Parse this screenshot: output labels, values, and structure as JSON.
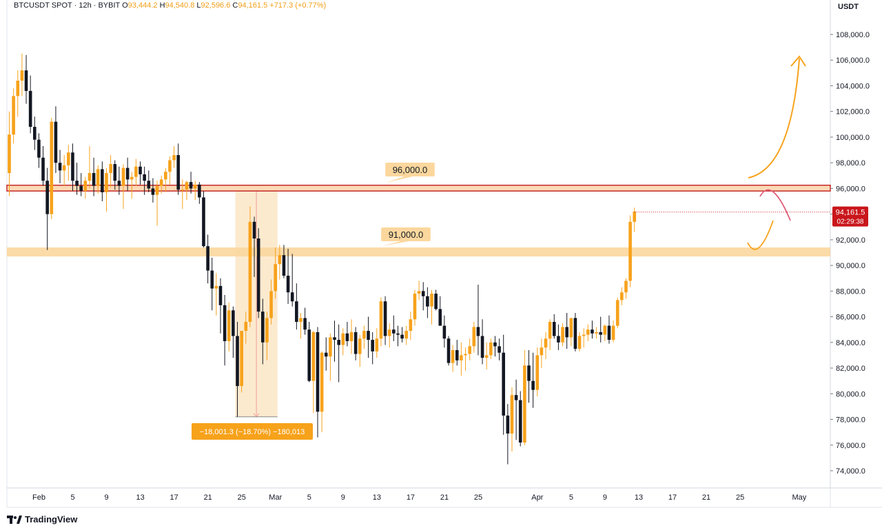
{
  "header": {
    "symbol": "BTCUSDT SPOT · 12h · BYBIT",
    "o_label": "O",
    "o_value": "93,444.2",
    "h_label": "H",
    "h_value": "94,540.8",
    "l_label": "L",
    "l_value": "92,596.6",
    "c_label": "C",
    "c_value": "94,161.5",
    "change": "+717.3 (+0.77%)"
  },
  "brand": "TradingView",
  "colors": {
    "up": "#f7a21b",
    "down": "#131722",
    "accent": "#f29d15",
    "resistance": "#c62828",
    "price_tag": "#c9161b"
  },
  "chart_data": {
    "type": "candlestick",
    "currency_label": "USDT",
    "ylim": [
      73000,
      110000
    ],
    "y_ticks": [
      74000,
      76000,
      78000,
      80000,
      82000,
      84000,
      86000,
      88000,
      90000,
      92000,
      94000,
      96000,
      98000,
      100000,
      102000,
      104000,
      106000,
      108000
    ],
    "y_tick_labels": [
      "74,000.0",
      "76,000.0",
      "78,000.0",
      "80,000.0",
      "82,000.0",
      "84,000.0",
      "86,000.0",
      "88,000.0",
      "90,000.0",
      "92,000.0",
      "94,000.0",
      "96,000.0",
      "98,000.0",
      "100,000.0",
      "102,000.0",
      "104,000.0",
      "106,000.0",
      "108,000.0"
    ],
    "x_tick_labels": [
      "Feb",
      "5",
      "9",
      "13",
      "17",
      "21",
      "25",
      "Mar",
      "5",
      "9",
      "13",
      "17",
      "21",
      "25",
      "Apr",
      "5",
      "9",
      "13",
      "17",
      "21",
      "25",
      "May"
    ],
    "x_tick_index": [
      0,
      8,
      16,
      24,
      32,
      40,
      48,
      56,
      64,
      72,
      80,
      88,
      96,
      104,
      118,
      126,
      134,
      142,
      150,
      158,
      166,
      180
    ],
    "candles": [
      [
        97200,
        102000,
        95400,
        100200
      ],
      [
        100200,
        103800,
        99500,
        103200
      ],
      [
        103200,
        105200,
        101600,
        104400
      ],
      [
        104400,
        106500,
        103200,
        105200
      ],
      [
        105200,
        106400,
        102600,
        103600
      ],
      [
        103600,
        104800,
        100300,
        100800
      ],
      [
        100800,
        101600,
        99000,
        99800
      ],
      [
        99800,
        100300,
        97600,
        98400
      ],
      [
        98400,
        99300,
        96200,
        96600
      ],
      [
        96600,
        97600,
        91200,
        94000
      ],
      [
        94000,
        101500,
        93600,
        101200
      ],
      [
        101200,
        102400,
        97200,
        98000
      ],
      [
        98000,
        99000,
        96400,
        97400
      ],
      [
        97400,
        98600,
        96200,
        97800
      ],
      [
        97800,
        99400,
        96600,
        98800
      ],
      [
        98800,
        99500,
        95800,
        96600
      ],
      [
        96600,
        98000,
        95500,
        96200
      ],
      [
        96200,
        97200,
        95400,
        95800
      ],
      [
        95800,
        96900,
        95200,
        96600
      ],
      [
        96600,
        99300,
        96000,
        97200
      ],
      [
        97200,
        98400,
        95400,
        96200
      ],
      [
        96200,
        97800,
        95600,
        97500
      ],
      [
        97500,
        98100,
        95000,
        95700
      ],
      [
        95700,
        97600,
        94200,
        97200
      ],
      [
        97200,
        98600,
        96100,
        97900
      ],
      [
        97900,
        98200,
        95900,
        96600
      ],
      [
        96600,
        97700,
        95500,
        96200
      ],
      [
        96200,
        97900,
        94400,
        97600
      ],
      [
        97600,
        98400,
        95800,
        96700
      ],
      [
        96700,
        97300,
        95200,
        96900
      ],
      [
        96900,
        98300,
        96200,
        97700
      ],
      [
        97700,
        98100,
        96300,
        97100
      ],
      [
        97100,
        97700,
        95500,
        96600
      ],
      [
        96600,
        97400,
        95700,
        96000
      ],
      [
        96000,
        96800,
        94900,
        95500
      ],
      [
        95500,
        96600,
        93100,
        96200
      ],
      [
        96200,
        97000,
        95600,
        96700
      ],
      [
        96700,
        97600,
        95700,
        97300
      ],
      [
        97300,
        98500,
        96300,
        98200
      ],
      [
        98200,
        99300,
        97600,
        98600
      ],
      [
        98600,
        99500,
        95500,
        95900
      ],
      [
        95900,
        96700,
        94400,
        95900
      ],
      [
        95900,
        96600,
        95100,
        96500
      ],
      [
        96500,
        97300,
        95600,
        96000
      ],
      [
        96000,
        96600,
        95100,
        96300
      ],
      [
        96300,
        96500,
        94800,
        95300
      ],
      [
        95300,
        95800,
        91400,
        91500
      ],
      [
        91500,
        92400,
        88600,
        89600
      ],
      [
        89600,
        90600,
        86500,
        88200
      ],
      [
        88200,
        89400,
        86100,
        88400
      ],
      [
        88400,
        89000,
        84700,
        86900
      ],
      [
        86900,
        87700,
        82200,
        84100
      ],
      [
        84100,
        87100,
        83300,
        86500
      ],
      [
        86500,
        86800,
        82800,
        84500
      ],
      [
        84500,
        85600,
        78200,
        80600
      ],
      [
        80600,
        84700,
        80100,
        84900
      ],
      [
        84900,
        86400,
        83900,
        85600
      ],
      [
        85600,
        94600,
        85200,
        93400
      ],
      [
        93400,
        93800,
        89100,
        92100
      ],
      [
        92100,
        92900,
        85900,
        86400
      ],
      [
        86400,
        87400,
        82300,
        84000
      ],
      [
        84000,
        86400,
        82600,
        85900
      ],
      [
        85900,
        88900,
        85400,
        88000
      ],
      [
        88000,
        91400,
        87400,
        90100
      ],
      [
        90100,
        91600,
        88900,
        90800
      ],
      [
        90800,
        91600,
        89000,
        89200
      ],
      [
        89200,
        91300,
        87000,
        87900
      ],
      [
        87900,
        90900,
        86800,
        87200
      ],
      [
        87200,
        88600,
        85000,
        85600
      ],
      [
        85600,
        86300,
        84300,
        85900
      ],
      [
        85900,
        86700,
        84600,
        85000
      ],
      [
        85000,
        85600,
        80900,
        81000
      ],
      [
        81000,
        84900,
        78500,
        84800
      ],
      [
        84800,
        85200,
        76600,
        78600
      ],
      [
        78600,
        83300,
        77000,
        83200
      ],
      [
        83200,
        84400,
        81800,
        82900
      ],
      [
        82900,
        84700,
        81000,
        84400
      ],
      [
        84400,
        85700,
        82500,
        84200
      ],
      [
        84200,
        85400,
        80900,
        83800
      ],
      [
        83800,
        85100,
        83000,
        84700
      ],
      [
        84700,
        85600,
        83700,
        84100
      ],
      [
        84100,
        85800,
        83100,
        84800
      ],
      [
        84800,
        85200,
        82600,
        83100
      ],
      [
        83100,
        84600,
        82100,
        84300
      ],
      [
        84300,
        85300,
        83500,
        84900
      ],
      [
        84900,
        86000,
        82800,
        84200
      ],
      [
        84200,
        84800,
        82300,
        83300
      ],
      [
        83300,
        85100,
        82800,
        84300
      ],
      [
        84300,
        87500,
        83700,
        87200
      ],
      [
        87200,
        87600,
        83800,
        84500
      ],
      [
        84500,
        85500,
        83600,
        85000
      ],
      [
        85000,
        86100,
        84100,
        84700
      ],
      [
        84700,
        85300,
        83700,
        84600
      ],
      [
        84600,
        85200,
        84000,
        84300
      ],
      [
        84300,
        85300,
        83800,
        84900
      ],
      [
        84900,
        86400,
        84200,
        85800
      ],
      [
        85800,
        88100,
        85300,
        87800
      ],
      [
        87800,
        88800,
        87300,
        88000
      ],
      [
        88000,
        88700,
        86500,
        87600
      ],
      [
        87600,
        88300,
        85900,
        86800
      ],
      [
        86800,
        88100,
        85400,
        87800
      ],
      [
        87800,
        88100,
        86500,
        86600
      ],
      [
        86600,
        87600,
        85300,
        85300
      ],
      [
        85300,
        86100,
        83600,
        84300
      ],
      [
        84300,
        84500,
        82200,
        82400
      ],
      [
        82400,
        83800,
        81700,
        83400
      ],
      [
        83400,
        84200,
        82200,
        82600
      ],
      [
        82600,
        84000,
        81400,
        83000
      ],
      [
        83000,
        83600,
        81800,
        83100
      ],
      [
        83100,
        84300,
        82600,
        83700
      ],
      [
        83700,
        85600,
        83200,
        85200
      ],
      [
        85200,
        88500,
        83000,
        84500
      ],
      [
        84500,
        85800,
        82300,
        82800
      ],
      [
        82800,
        84000,
        81900,
        83000
      ],
      [
        83000,
        84300,
        82700,
        84000
      ],
      [
        84000,
        84500,
        82900,
        83700
      ],
      [
        83700,
        84300,
        82600,
        83200
      ],
      [
        83200,
        84600,
        76800,
        78300
      ],
      [
        78300,
        79200,
        74500,
        76900
      ],
      [
        76900,
        80500,
        75500,
        79900
      ],
      [
        79900,
        81100,
        76400,
        79500
      ],
      [
        79500,
        80200,
        75900,
        76200
      ],
      [
        76200,
        83400,
        76000,
        82200
      ],
      [
        82200,
        83400,
        79300,
        81000
      ],
      [
        81000,
        83200,
        78900,
        80300
      ],
      [
        80300,
        83600,
        79800,
        83000
      ],
      [
        83000,
        84300,
        82000,
        83600
      ],
      [
        83600,
        84800,
        82700,
        84300
      ],
      [
        84300,
        85800,
        83400,
        85600
      ],
      [
        85600,
        86200,
        84300,
        84500
      ],
      [
        84500,
        85400,
        83400,
        84000
      ],
      [
        84000,
        85500,
        83700,
        85200
      ],
      [
        85200,
        86300,
        83500,
        84400
      ],
      [
        84400,
        85900,
        83700,
        85900
      ],
      [
        85900,
        86300,
        83300,
        83500
      ],
      [
        83500,
        84800,
        83300,
        84500
      ],
      [
        84500,
        85100,
        83600,
        84600
      ],
      [
        84600,
        85400,
        84100,
        85000
      ],
      [
        85000,
        85700,
        84300,
        84700
      ],
      [
        84700,
        85200,
        84300,
        84800
      ],
      [
        84800,
        86000,
        84000,
        84600
      ],
      [
        84600,
        85400,
        84100,
        85300
      ],
      [
        85300,
        86100,
        83900,
        84200
      ],
      [
        84200,
        85700,
        84000,
        85300
      ],
      [
        85300,
        87500,
        85100,
        87300
      ],
      [
        87300,
        88300,
        86900,
        87900
      ],
      [
        87900,
        89000,
        87400,
        88800
      ],
      [
        88800,
        93900,
        88300,
        93400
      ],
      [
        93400,
        94500,
        92600,
        94200
      ]
    ],
    "levels": [
      {
        "label": "96,000.0",
        "value": 96000,
        "low": 95800,
        "high": 96250
      },
      {
        "label": "91,000.0",
        "value": 91000,
        "low": 90700,
        "high": 91400
      }
    ],
    "measure": {
      "label": "−18,001.3 (−18.70%) −180,013",
      "from_index": 54,
      "to_index": 63,
      "from_price": 96200,
      "to_price": 78200
    },
    "last_price": {
      "label": "94,161.5",
      "countdown": "02:29:38",
      "value": 94161.5
    }
  }
}
